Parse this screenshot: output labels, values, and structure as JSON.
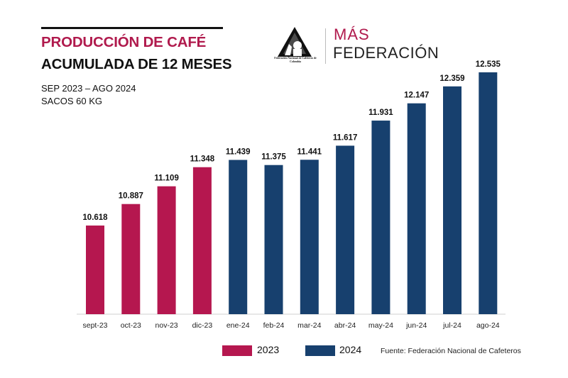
{
  "header": {
    "title_line1": "PRODUCCIÓN DE CAFÉ",
    "title_line2": "ACUMULADA DE 12 MESES",
    "subtitle_period": "SEP 2023 – AGO 2024",
    "subtitle_unit": "SACOS 60 KG"
  },
  "logo": {
    "org_text": "Federación Nacional de Cafeteros de Colombia",
    "slogan_line1": "MÁS",
    "slogan_line2": "FEDERACIÓN"
  },
  "source": "Fuente: Federación Nacional de Cafeteros",
  "colors": {
    "2023": "#b5174f",
    "2024": "#17406e",
    "title_accent": "#b01a4d"
  },
  "chart_data": {
    "type": "bar",
    "title": "PRODUCCIÓN DE CAFÉ ACUMULADA DE 12 MESES",
    "ylabel": "SACOS 60 KG",
    "categories": [
      "sept-23",
      "oct-23",
      "nov-23",
      "dic-23",
      "ene-24",
      "feb-24",
      "mar-24",
      "abr-24",
      "may-24",
      "jun-24",
      "jul-24",
      "ago-24"
    ],
    "values": [
      10.618,
      10.887,
      11.109,
      11.348,
      11.439,
      11.375,
      11.441,
      11.617,
      11.931,
      12.147,
      12.359,
      12.535
    ],
    "labels": [
      "10.618",
      "10.887",
      "11.109",
      "11.348",
      "11.439",
      "11.375",
      "11.441",
      "11.617",
      "11.931",
      "12.147",
      "12.359",
      "12.535"
    ],
    "series_by_year": [
      "2023",
      "2023",
      "2023",
      "2023",
      "2024",
      "2024",
      "2024",
      "2024",
      "2024",
      "2024",
      "2024",
      "2024"
    ],
    "legend": [
      {
        "name": "2023",
        "color": "#b5174f"
      },
      {
        "name": "2024",
        "color": "#17406e"
      }
    ],
    "legend_position": "bottom",
    "ylim": [
      9.5,
      12.6
    ],
    "grid": false
  }
}
